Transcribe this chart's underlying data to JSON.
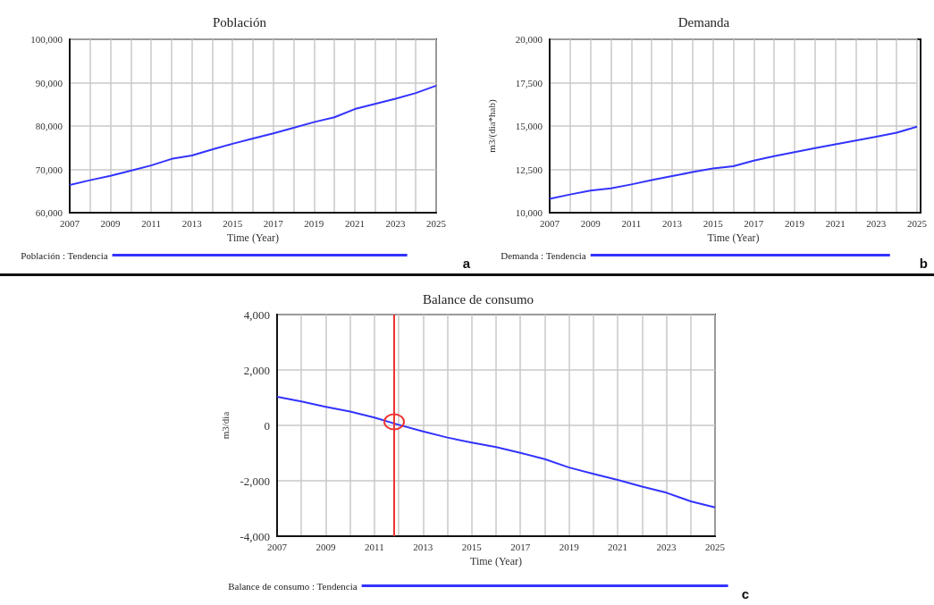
{
  "chart_data": [
    {
      "type": "line",
      "title": "Población",
      "xlabel": "Time (Year)",
      "annotations": [
        "a"
      ],
      "x": [
        2007,
        2008,
        2009,
        2010,
        2011,
        2012,
        2013,
        2014,
        2015,
        2016,
        2017,
        2018,
        2019,
        2020,
        2021,
        2022,
        2023,
        2024,
        2025
      ],
      "series": [
        {
          "name": "Población : Tendencia",
          "color": "#3333ff",
          "values": [
            66400,
            67500,
            68500,
            69700,
            70900,
            72400,
            73200,
            74600,
            75900,
            77100,
            78300,
            79600,
            80900,
            82000,
            83900,
            85100,
            86300,
            87600,
            89300
          ]
        }
      ],
      "xlim": [
        2007,
        2025
      ],
      "xticks": [
        2007,
        {
          "value": 2008,
          "label": null
        },
        2009,
        {
          "value": 2010,
          "label": null
        },
        2011,
        {
          "value": 2012,
          "label": null
        },
        2013,
        {
          "value": 2014,
          "label": null
        },
        2015,
        {
          "value": 2016,
          "label": null
        },
        2017,
        {
          "value": 2018,
          "label": null
        },
        2019,
        {
          "value": 2020,
          "label": null
        },
        2021,
        {
          "value": 2022,
          "label": null
        },
        2023,
        {
          "value": 2024,
          "label": null
        },
        2025
      ],
      "ylim": [
        60000,
        100000
      ],
      "yticks": [
        {
          "value": 60000,
          "label": "60,000"
        },
        {
          "value": 70000,
          "label": "70,000"
        },
        {
          "value": 80000,
          "label": "80,000"
        },
        {
          "value": 90000,
          "label": "90,000"
        },
        {
          "value": 100000,
          "label": "100,000"
        }
      ],
      "grid": true,
      "legend": "bottom",
      "marker": "none",
      "line_style": "solid"
    },
    {
      "type": "line",
      "title": "Demanda",
      "xlabel": "Time (Year)",
      "ylabel": "m3/(dia*hab)",
      "annotations": [
        "b"
      ],
      "x": [
        2007,
        2008,
        2009,
        2010,
        2011,
        2012,
        2013,
        2014,
        2015,
        2016,
        2017,
        2018,
        2019,
        2020,
        2021,
        2022,
        2023,
        2024,
        2025
      ],
      "series": [
        {
          "name": "Demanda : Tendencia",
          "color": "#3333ff",
          "values": [
            10800,
            11050,
            11280,
            11400,
            11630,
            11880,
            12110,
            12340,
            12550,
            12680,
            13000,
            13260,
            13490,
            13720,
            13940,
            14160,
            14380,
            14610,
            14960
          ]
        }
      ],
      "xlim": [
        2007,
        2025
      ],
      "xticks": [
        2007,
        {
          "value": 2008,
          "label": null
        },
        2009,
        {
          "value": 2010,
          "label": null
        },
        2011,
        {
          "value": 2012,
          "label": null
        },
        2013,
        {
          "value": 2014,
          "label": null
        },
        2015,
        {
          "value": 2016,
          "label": null
        },
        2017,
        {
          "value": 2018,
          "label": null
        },
        2019,
        {
          "value": 2020,
          "label": null
        },
        2021,
        {
          "value": 2022,
          "label": null
        },
        2023,
        {
          "value": 2024,
          "label": null
        },
        2025
      ],
      "ylim": [
        10000,
        20000
      ],
      "yticks": [
        {
          "value": 10000,
          "label": "10,000"
        },
        {
          "value": 12500,
          "label": "12,500"
        },
        {
          "value": 15000,
          "label": "15,000"
        },
        {
          "value": 17500,
          "label": "17,500"
        },
        {
          "value": 20000,
          "label": "20,000"
        }
      ],
      "grid": true,
      "legend": "bottom",
      "marker": "none",
      "line_style": "solid"
    },
    {
      "type": "line",
      "title": "Balance de consumo",
      "xlabel": "Time (Year)",
      "ylabel": "m3/dia",
      "annotations": [
        "c"
      ],
      "x": [
        2007,
        2008,
        2009,
        2010,
        2011,
        2012,
        2013,
        2014,
        2015,
        2016,
        2017,
        2018,
        2019,
        2020,
        2021,
        2022,
        2023,
        2024,
        2025
      ],
      "series": [
        {
          "name": "Balance de consumo : Tendencia",
          "color": "#3333ff",
          "values": [
            1030,
            860,
            670,
            500,
            280,
            20,
            -220,
            -440,
            -620,
            -780,
            -990,
            -1220,
            -1520,
            -1750,
            -1970,
            -2210,
            -2430,
            -2740,
            -2960
          ]
        }
      ],
      "xlim": [
        2007,
        2025
      ],
      "xticks": [
        2007,
        {
          "value": 2008,
          "label": null
        },
        2009,
        {
          "value": 2010,
          "label": null
        },
        2011,
        {
          "value": 2012,
          "label": null
        },
        2013,
        {
          "value": 2014,
          "label": null
        },
        2015,
        {
          "value": 2016,
          "label": null
        },
        2017,
        {
          "value": 2018,
          "label": null
        },
        2019,
        {
          "value": 2020,
          "label": null
        },
        2021,
        {
          "value": 2022,
          "label": null
        },
        2023,
        {
          "value": 2024,
          "label": null
        },
        2025
      ],
      "ylim": [
        -4000,
        4000
      ],
      "yticks": [
        {
          "value": -4000,
          "label": "-4,000"
        },
        {
          "value": -2000,
          "label": "-2,000"
        },
        0,
        {
          "value": 2000,
          "label": "2,000"
        },
        {
          "value": 4000,
          "label": "4,000"
        }
      ],
      "ref_lines": [
        {
          "axis": "x",
          "value": 2011.8,
          "label": null,
          "color": "#ee3333",
          "line_style": "solid"
        }
      ],
      "grid": true,
      "legend": "bottom",
      "marker": "none",
      "line_style": "solid"
    }
  ]
}
